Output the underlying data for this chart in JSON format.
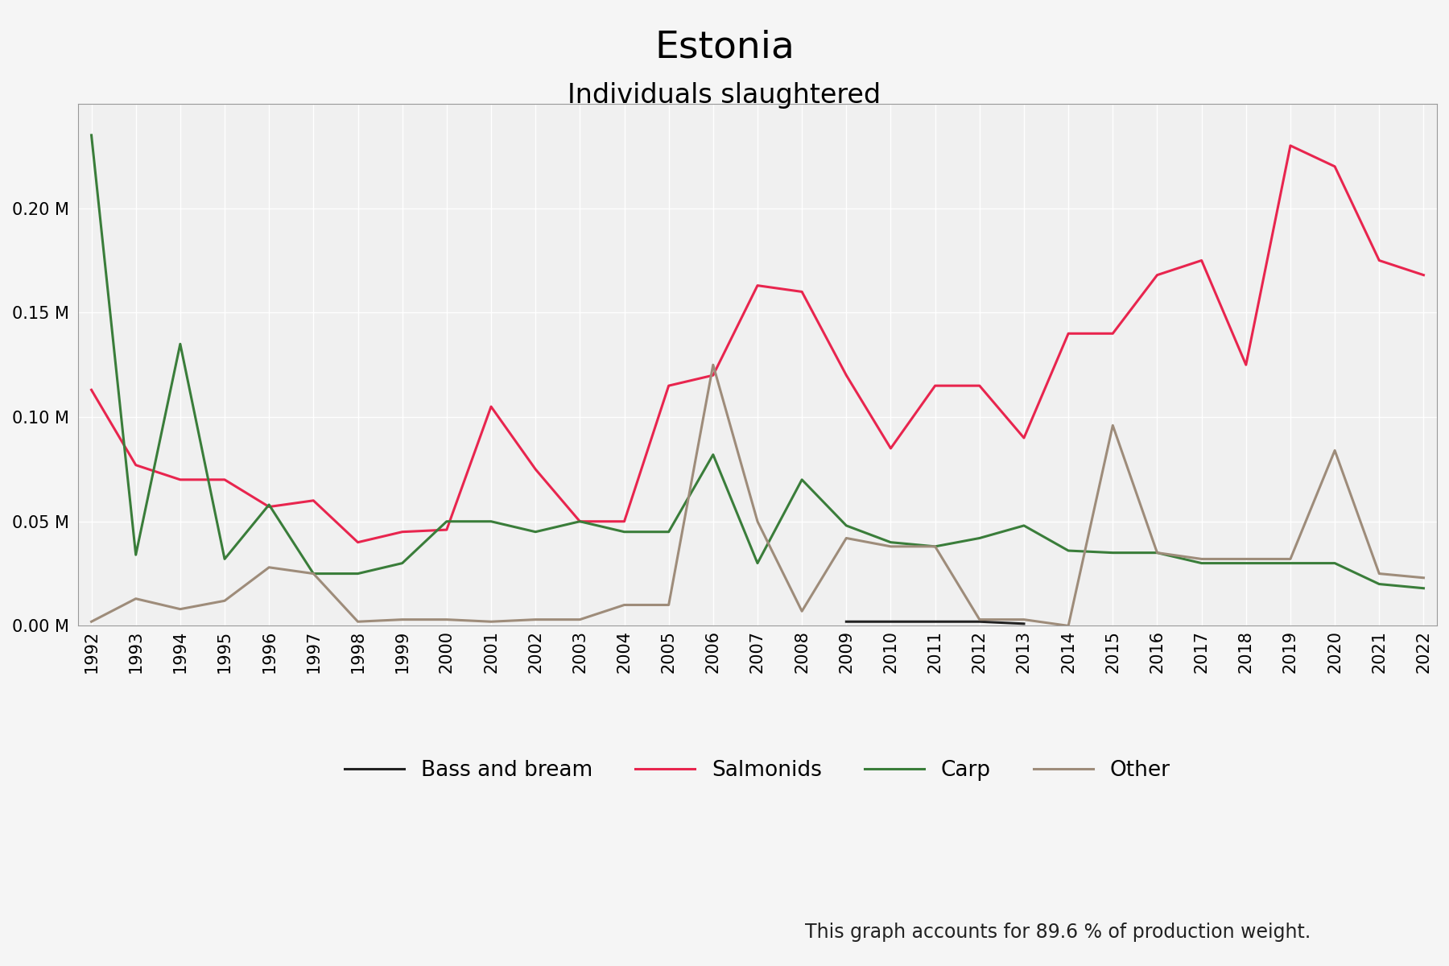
{
  "title": "Estonia",
  "subtitle": "Individuals slaughtered",
  "footnote": "This graph accounts for 89.6 % of production weight.",
  "years": [
    1992,
    1993,
    1994,
    1995,
    1996,
    1997,
    1998,
    1999,
    2000,
    2001,
    2002,
    2003,
    2004,
    2005,
    2006,
    2007,
    2008,
    2009,
    2010,
    2011,
    2012,
    2013,
    2014,
    2015,
    2016,
    2017,
    2018,
    2019,
    2020,
    2021,
    2022
  ],
  "series": {
    "Bass and bream": {
      "color": "#222222",
      "data": [
        null,
        null,
        null,
        null,
        null,
        null,
        null,
        null,
        null,
        null,
        null,
        null,
        null,
        null,
        null,
        null,
        null,
        0.002,
        0.002,
        0.002,
        0.002,
        0.001,
        null,
        null,
        null,
        null,
        null,
        null,
        null,
        null,
        null
      ]
    },
    "Salmonids": {
      "color": "#e8254e",
      "data": [
        0.113,
        0.077,
        0.07,
        0.07,
        0.057,
        0.06,
        0.04,
        0.045,
        0.046,
        0.105,
        0.075,
        0.05,
        0.05,
        0.115,
        0.12,
        0.163,
        0.16,
        0.12,
        0.085,
        0.115,
        0.115,
        0.09,
        0.14,
        0.14,
        0.168,
        0.175,
        0.125,
        0.23,
        0.22,
        0.175,
        0.168
      ]
    },
    "Carp": {
      "color": "#3a7d3a",
      "data": [
        0.235,
        0.034,
        0.135,
        0.032,
        0.058,
        0.025,
        0.025,
        0.03,
        0.05,
        0.05,
        0.045,
        0.05,
        0.045,
        0.045,
        0.082,
        0.03,
        0.07,
        0.048,
        0.04,
        0.038,
        0.042,
        0.048,
        0.036,
        0.035,
        0.035,
        0.03,
        0.03,
        0.03,
        0.03,
        0.02,
        0.018
      ]
    },
    "Other": {
      "color": "#9e8c7a",
      "data": [
        0.002,
        0.013,
        0.008,
        0.012,
        0.028,
        0.025,
        0.002,
        0.003,
        0.003,
        0.002,
        0.003,
        0.003,
        0.01,
        0.01,
        0.125,
        0.05,
        0.007,
        0.042,
        0.038,
        0.038,
        0.003,
        0.003,
        0.0,
        0.096,
        0.035,
        0.032,
        0.032,
        0.032,
        0.084,
        0.025,
        0.023
      ]
    }
  },
  "ylim": [
    0,
    0.25
  ],
  "yticks": [
    0.0,
    0.05,
    0.1,
    0.15,
    0.2
  ],
  "plot_bg": "#f0f0f0",
  "fig_bg": "#f5f5f5",
  "grid_color": "#ffffff",
  "title_fontsize": 34,
  "subtitle_fontsize": 24,
  "tick_fontsize": 15,
  "legend_fontsize": 19,
  "footnote_fontsize": 17
}
